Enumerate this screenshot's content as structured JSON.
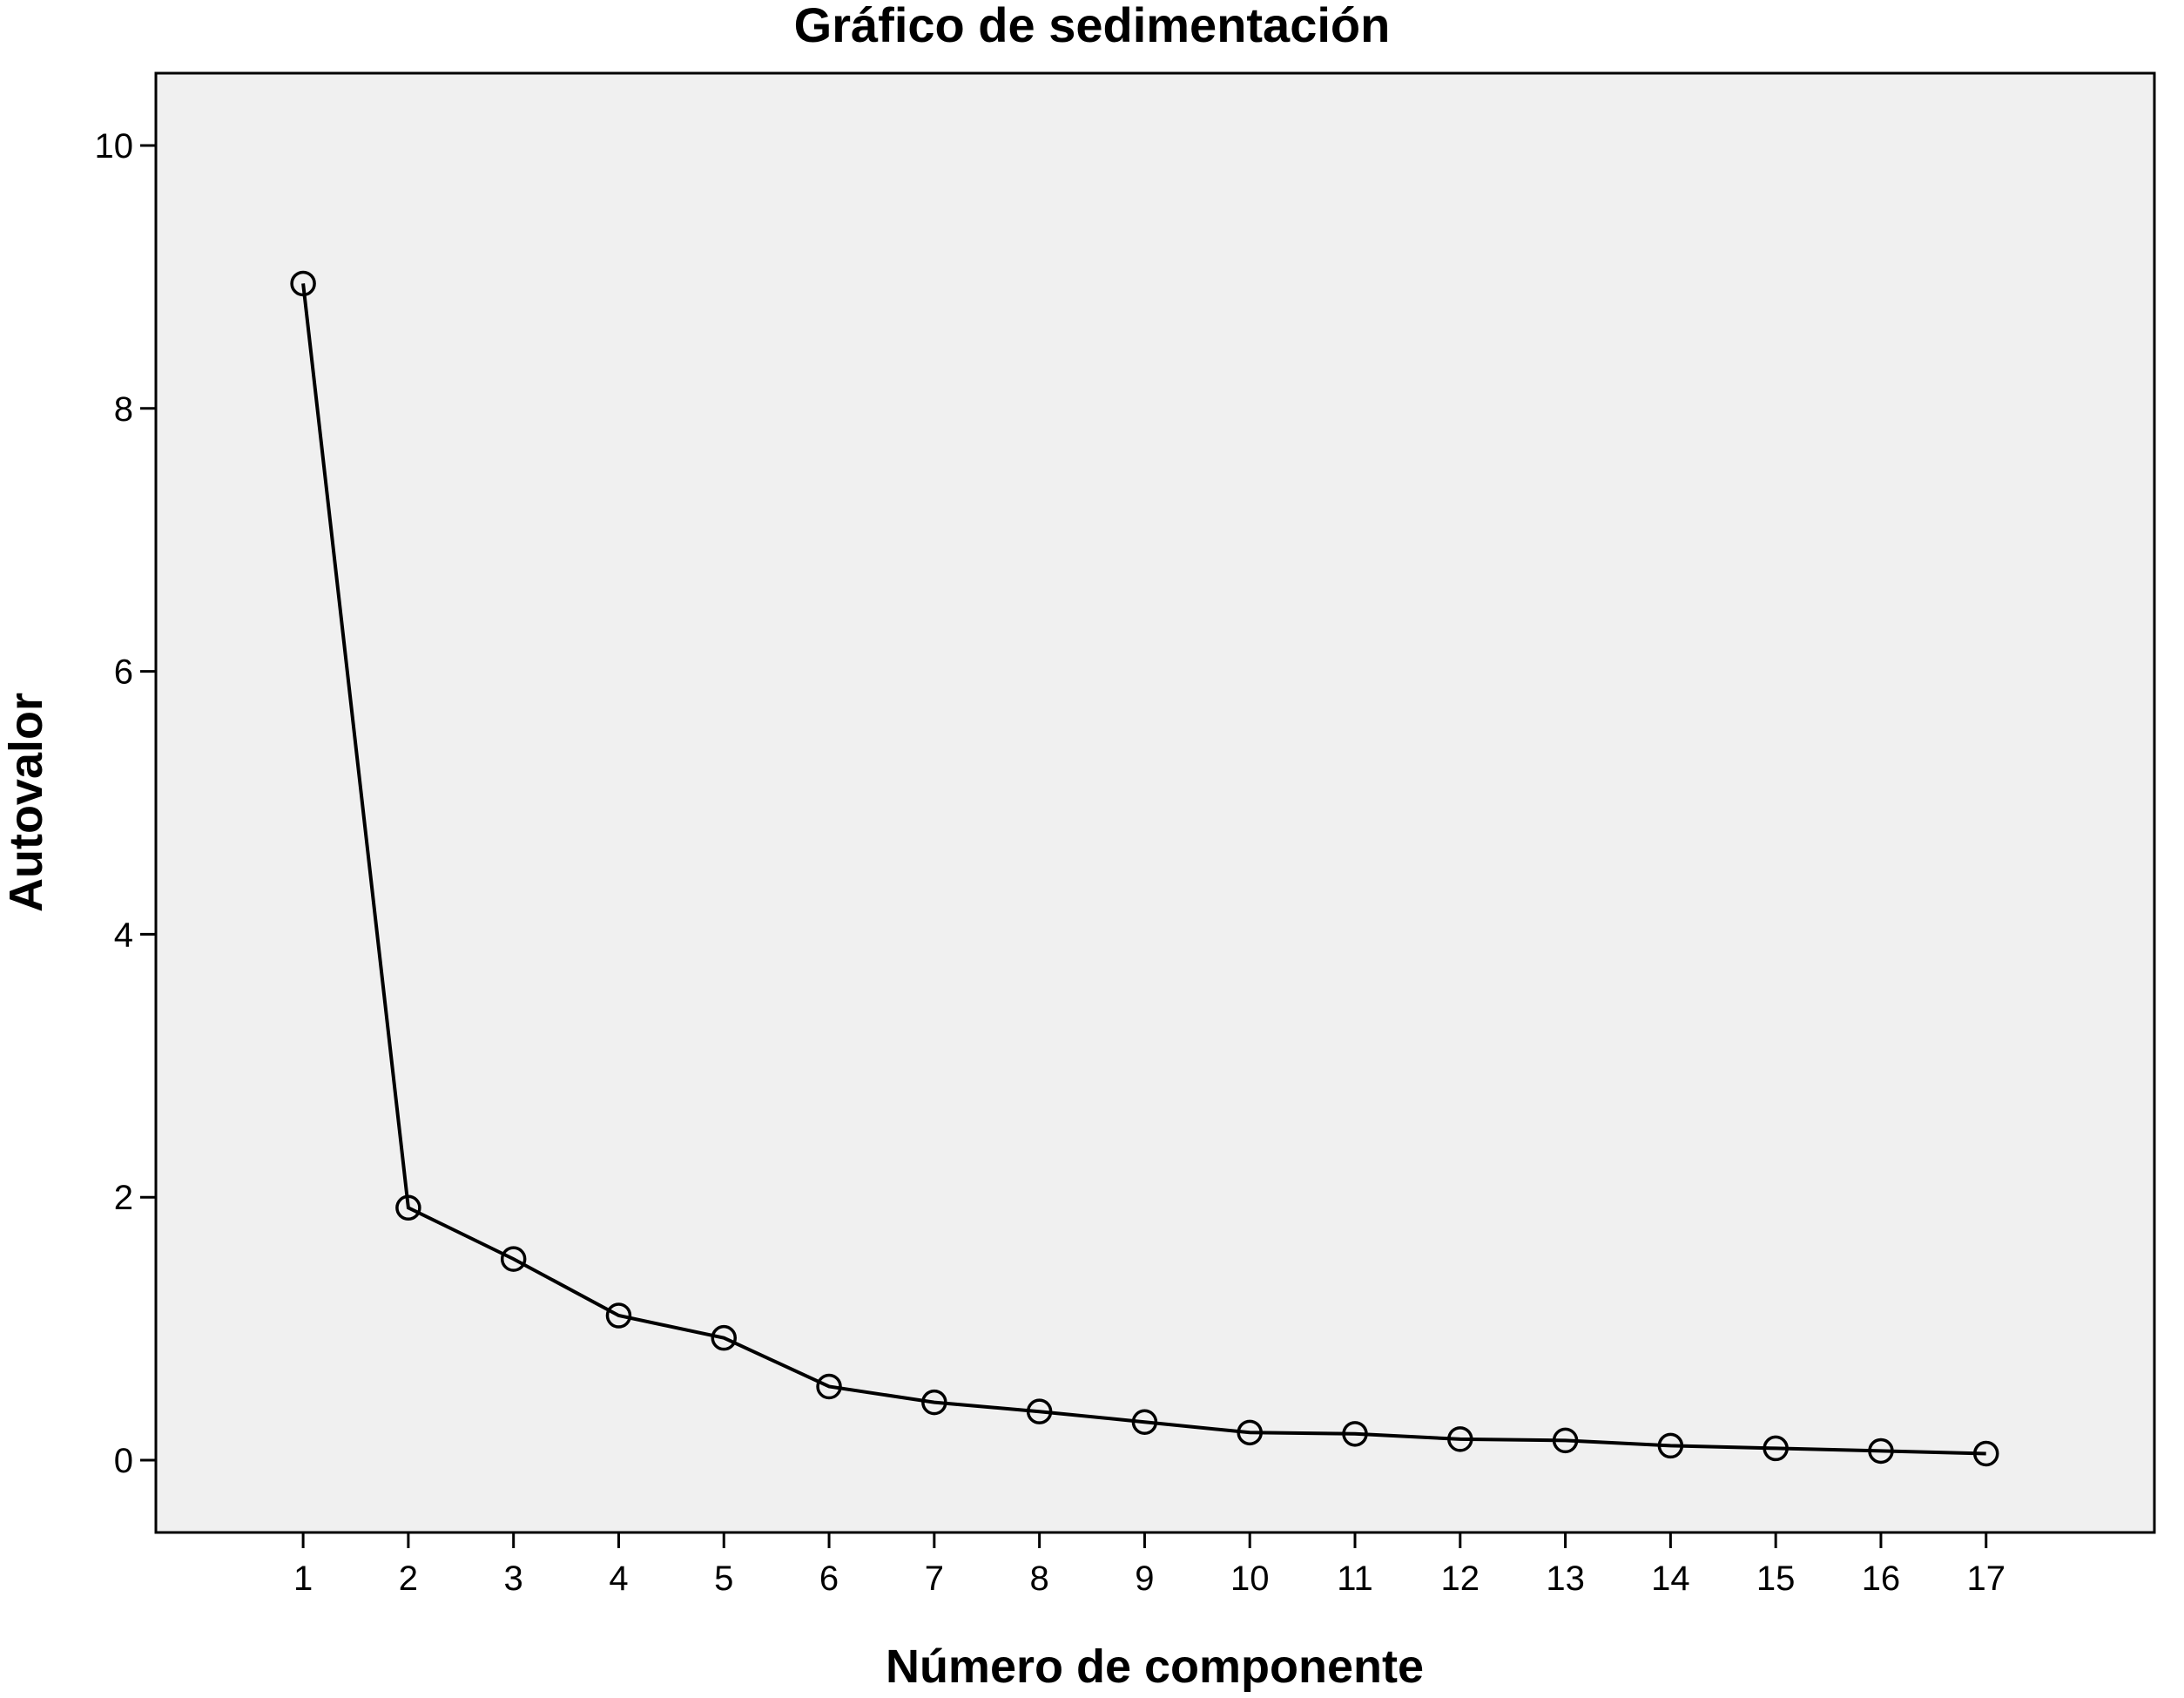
{
  "chart_data": {
    "type": "line",
    "title": "Gráfico de sedimentación",
    "xlabel": "Número de componente",
    "ylabel": "Autovalor",
    "x": [
      1,
      2,
      3,
      4,
      5,
      6,
      7,
      8,
      9,
      10,
      11,
      12,
      13,
      14,
      15,
      16,
      17
    ],
    "x_tick_labels": [
      "1",
      "2",
      "3",
      "4",
      "5",
      "6",
      "7",
      "8",
      "9",
      "10",
      "11",
      "12",
      "13",
      "14",
      "15",
      "16",
      "17"
    ],
    "series": [
      {
        "values": [
          8.95,
          1.92,
          1.53,
          1.1,
          0.93,
          0.56,
          0.44,
          0.37,
          0.29,
          0.21,
          0.2,
          0.16,
          0.15,
          0.11,
          0.09,
          0.07,
          0.05
        ]
      }
    ],
    "y_ticks": [
      0,
      2,
      4,
      6,
      8,
      10
    ],
    "y_tick_labels": [
      "0",
      "2",
      "4",
      "6",
      "8",
      "10"
    ],
    "xlim": [
      -0.4,
      18.6
    ],
    "ylim": [
      -0.55,
      10.55
    ],
    "grid": false,
    "marker": "open-circle",
    "colors": {
      "plot_background": "#f0f0f0",
      "line": "#000000",
      "frame": "#000000"
    }
  }
}
